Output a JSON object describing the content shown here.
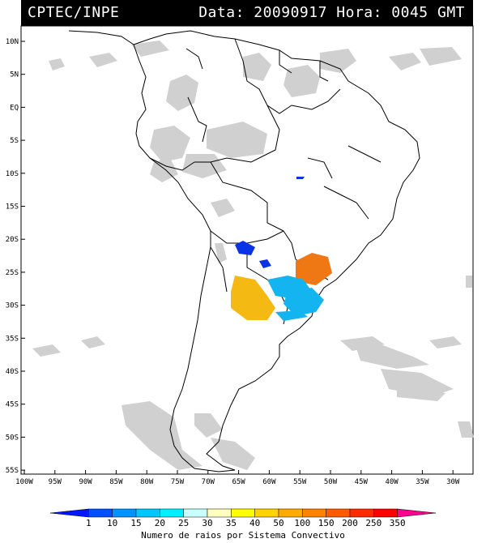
{
  "header": {
    "left": "CPTEC/INPE",
    "right": "Data: 20090917 Hora: 0045 GMT"
  },
  "axes": {
    "lat_labels": [
      "10N",
      "5N",
      "EQ",
      "5S",
      "10S",
      "15S",
      "20S",
      "25S",
      "30S",
      "35S",
      "40S",
      "45S",
      "50S",
      "55S"
    ],
    "lon_labels": [
      "100W",
      "95W",
      "90W",
      "85W",
      "80W",
      "75W",
      "70W",
      "65W",
      "60W",
      "55W",
      "50W",
      "45W",
      "40W",
      "35W",
      "30W"
    ]
  },
  "colorbar": {
    "values": [
      "1",
      "10",
      "15",
      "20",
      "25",
      "30",
      "35",
      "40",
      "50",
      "100",
      "150",
      "200",
      "250",
      "350"
    ],
    "colors": [
      "#0018ff",
      "#0050ff",
      "#0092ff",
      "#00c8ff",
      "#00f0ff",
      "#c8ffff",
      "#ffffc0",
      "#ffff00",
      "#ffd200",
      "#ffaa00",
      "#ff8200",
      "#ff5a00",
      "#ff2a00",
      "#ff0000",
      "#ff0090"
    ],
    "label": "Numero de raios por Sistema Convectivo"
  },
  "colors": {
    "cloud": "#c8c8c8",
    "system_blue": "#0a32e6",
    "system_cyan": "#14b4f0",
    "system_orange": "#f07814",
    "system_yellow": "#f5b914"
  }
}
